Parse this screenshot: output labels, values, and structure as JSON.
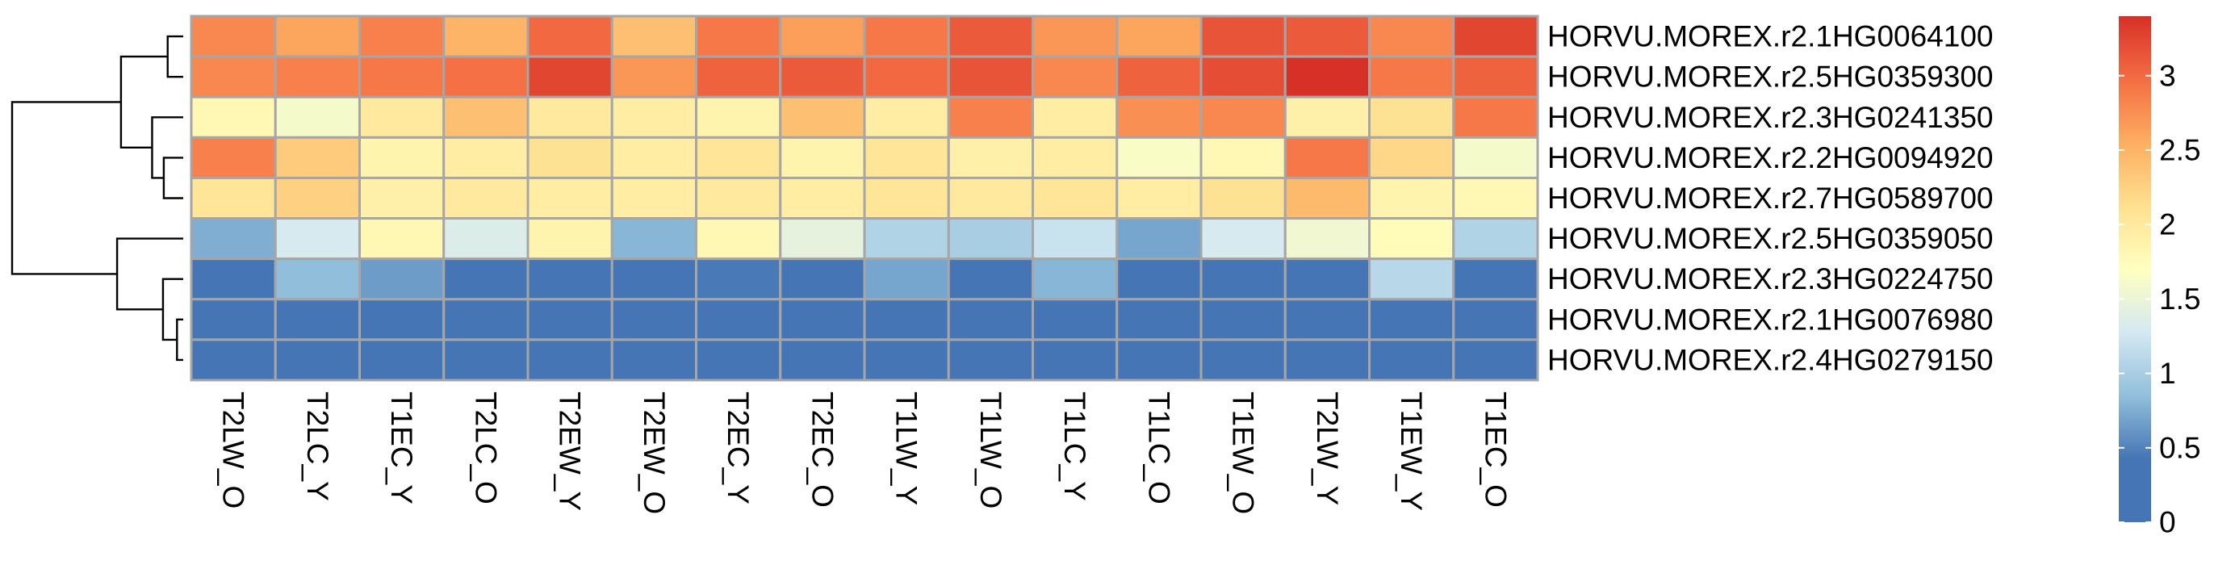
{
  "chart_data": {
    "type": "heatmap",
    "title": "",
    "xlabel": "",
    "ylabel": "",
    "columns": [
      "T2LW_O",
      "T2LC_Y",
      "T1EC_Y",
      "T2LC_O",
      "T2EW_Y",
      "T2EW_O",
      "T2EC_Y",
      "T2EC_O",
      "T1LW_Y",
      "T1LW_O",
      "T1LC_Y",
      "T1LC_O",
      "T1EW_O",
      "T2LW_Y",
      "T1EW_Y",
      "T1EC_O"
    ],
    "rows": [
      "HORVU.MOREX.r2.1HG0064100",
      "HORVU.MOREX.r2.5HG0359300",
      "HORVU.MOREX.r2.3HG0241350",
      "HORVU.MOREX.r2.2HG0094920",
      "HORVU.MOREX.r2.7HG0589700",
      "HORVU.MOREX.r2.5HG0359050",
      "HORVU.MOREX.r2.3HG0224750",
      "HORVU.MOREX.r2.1HG0076980",
      "HORVU.MOREX.r2.4HG0279150"
    ],
    "values": [
      [
        2.8,
        2.6,
        2.85,
        2.5,
        3.0,
        2.4,
        2.9,
        2.65,
        2.9,
        3.1,
        2.7,
        2.6,
        3.15,
        3.1,
        2.8,
        3.25
      ],
      [
        2.8,
        2.85,
        2.9,
        2.95,
        3.25,
        2.7,
        3.05,
        3.1,
        3.0,
        3.15,
        2.8,
        3.05,
        3.2,
        3.4,
        2.9,
        3.05
      ],
      [
        1.8,
        1.6,
        2.0,
        2.4,
        2.0,
        1.95,
        1.85,
        2.4,
        1.95,
        2.85,
        1.95,
        2.75,
        2.8,
        1.9,
        2.1,
        2.9
      ],
      [
        2.85,
        2.3,
        1.85,
        1.95,
        2.1,
        1.95,
        2.05,
        1.85,
        2.05,
        1.9,
        1.95,
        1.65,
        1.8,
        2.9,
        2.2,
        1.6
      ],
      [
        2.05,
        2.25,
        1.9,
        2.0,
        1.95,
        1.95,
        2.0,
        1.95,
        2.05,
        2.0,
        2.05,
        1.95,
        2.1,
        2.45,
        1.85,
        1.8
      ],
      [
        0.75,
        1.3,
        1.8,
        1.35,
        1.85,
        0.8,
        1.8,
        1.45,
        1.05,
        1.0,
        1.2,
        0.7,
        1.3,
        1.55,
        1.75,
        1.05
      ],
      [
        0.1,
        0.85,
        0.65,
        0.1,
        0.35,
        0.1,
        0.45,
        0.1,
        0.7,
        0.3,
        0.8,
        0.1,
        0.1,
        0.1,
        1.1,
        0.1
      ],
      [
        0.1,
        0.1,
        0.1,
        0.1,
        0.1,
        0.1,
        0.1,
        0.1,
        0.1,
        0.1,
        0.1,
        0.15,
        0.3,
        0.1,
        0.1,
        0.1
      ],
      [
        0.1,
        0.1,
        0.1,
        0.1,
        0.1,
        0.1,
        0.1,
        0.1,
        0.1,
        0.1,
        0.1,
        0.1,
        0.1,
        0.1,
        0.1,
        0.1
      ]
    ],
    "color_scale": {
      "min": 0,
      "max": 3.4,
      "stops": [
        {
          "v": 0.0,
          "c": "#4575b4"
        },
        {
          "v": 0.425,
          "c": "#4575b4"
        },
        {
          "v": 0.85,
          "c": "#91bfdb"
        },
        {
          "v": 1.275,
          "c": "#d4e9f2"
        },
        {
          "v": 1.7,
          "c": "#ffffbf"
        },
        {
          "v": 2.125,
          "c": "#fee090"
        },
        {
          "v": 2.55,
          "c": "#fdae61"
        },
        {
          "v": 2.975,
          "c": "#f46d43"
        },
        {
          "v": 3.4,
          "c": "#d73027"
        }
      ],
      "ticks": [
        {
          "value": 0,
          "label": "0"
        },
        {
          "value": 0.5,
          "label": "0.5"
        },
        {
          "value": 1,
          "label": "1"
        },
        {
          "value": 1.5,
          "label": "1.5"
        },
        {
          "value": 2,
          "label": "2"
        },
        {
          "value": 2.5,
          "label": "2.5"
        },
        {
          "value": 3,
          "label": "3"
        }
      ]
    },
    "cell_border_color": "#a6a6a6",
    "row_dendrogram": {
      "merges": [
        {
          "a": 7,
          "b": 8,
          "height": 0.08
        },
        {
          "a": 3,
          "b": 4,
          "height": 0.25
        },
        {
          "a": 0,
          "b": 1,
          "height": 0.2
        },
        {
          "a": 2,
          "b": "m1",
          "height": 0.4
        },
        {
          "a": "m2",
          "b": "m3",
          "height": 0.8
        },
        {
          "a": 6,
          "b": "m0",
          "height": 0.26
        },
        {
          "a": 5,
          "b": "m5",
          "height": 0.85
        },
        {
          "a": "m4",
          "b": "m6",
          "height": 2.2
        }
      ]
    },
    "legend_position": "right"
  }
}
